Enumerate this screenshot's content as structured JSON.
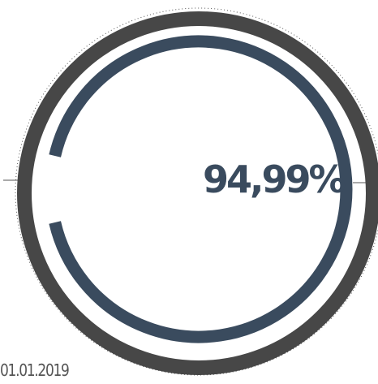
{
  "gauge": {
    "value_label": "94,99%",
    "value_fraction": 0.9499,
    "date_label": "01.01.2019",
    "colors": {
      "outer_ring": "#474747",
      "progress_arc": "#3a4b5e",
      "dotted_circle": "#555555",
      "background": "#ffffff"
    }
  }
}
